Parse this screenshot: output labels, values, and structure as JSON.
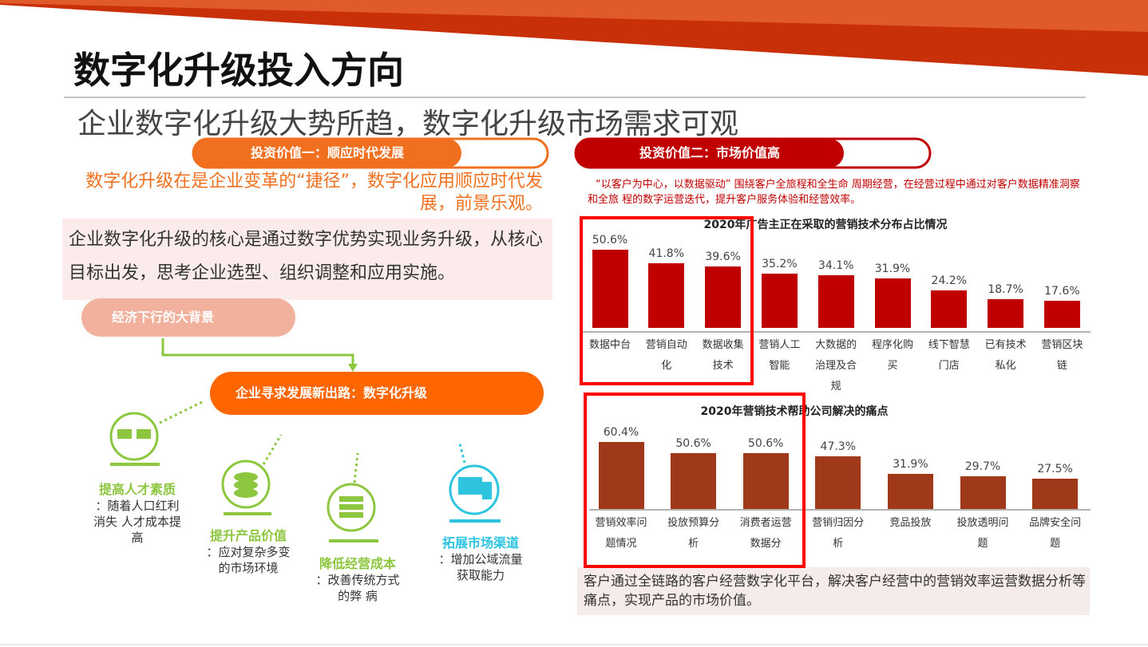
{
  "title": "数字化升级投入方向",
  "subtitle": "企业数字化升级大势所趋，数字化升级市场需求可观",
  "left": {
    "pill": "投资价值一：顺应时代发展",
    "headline": "数字化升级在是企业变革的“捷径”，数字化应用顺应时代发展，前景乐观。",
    "body": "企业数字化升级的核心是通过数字优势实现业务升级，从核心目标出发，思考企业选型、组织调整和应用实施。",
    "background": "经济下行的大背景",
    "outcome": "企业寻求发展新出路：数字化升级",
    "items": [
      {
        "title": "提高人才素质",
        "text": "：随着人口红利消失 人才成本提 高"
      },
      {
        "title": "提升产品价值",
        "text": "：应对复杂多变的市场环境"
      },
      {
        "title": "降低经营成本",
        "text": "：改善传统方式的弊 病"
      },
      {
        "title": "拓展市场渠道",
        "text": "：增加公域流量获取能力"
      }
    ]
  },
  "right": {
    "pill": "投资价值二：市场价值高",
    "headline": "“以客户为中心，以数据驱动” 围绕客户全旅程和全生命 周期经营，在经营过程中通过对客户数据精准洞察和全旅 程的数字运营迭代，提升客户服务体验和经营效率。",
    "footer": "客户通过全链路的客户经营数字化平台，解决客户经营中的营销效率运营数据分析等痛点，实现产品的市场价值。"
  },
  "chart_data": [
    {
      "type": "bar",
      "title": "2020年广告主正在采取的营销技术分布占比情况",
      "color": "#c00000",
      "categories": [
        "数据中台",
        "营销自动化",
        "数据收集技术",
        "营销人工智能",
        "大数据的治理及合规",
        "程序化购买",
        "线下智慧门店",
        "已有技术私化",
        "营销区块链"
      ],
      "values": [
        50.6,
        41.8,
        39.6,
        35.2,
        34.1,
        31.9,
        24.2,
        18.7,
        17.6
      ],
      "value_labels": [
        "50.6%",
        "41.8%",
        "39.6%",
        "35.2%",
        "34.1%",
        "31.9%",
        "24.2%",
        "18.7%",
        "17.6%"
      ]
    },
    {
      "type": "bar",
      "title": "2020年营销技术帮助公司解决的痛点",
      "color": "#a0381a",
      "categories": [
        "营销效率问题情况",
        "投放预算分析",
        "消费者运营数据分",
        "营销归因分析",
        "竞品投放",
        "投放透明问题",
        "品牌安全问题"
      ],
      "values": [
        60.4,
        50.6,
        50.6,
        47.3,
        31.9,
        29.7,
        27.5
      ],
      "value_labels": [
        "60.4%",
        "50.6%",
        "50.6%",
        "47.3%",
        "31.9%",
        "29.7%",
        "27.5%"
      ]
    }
  ]
}
